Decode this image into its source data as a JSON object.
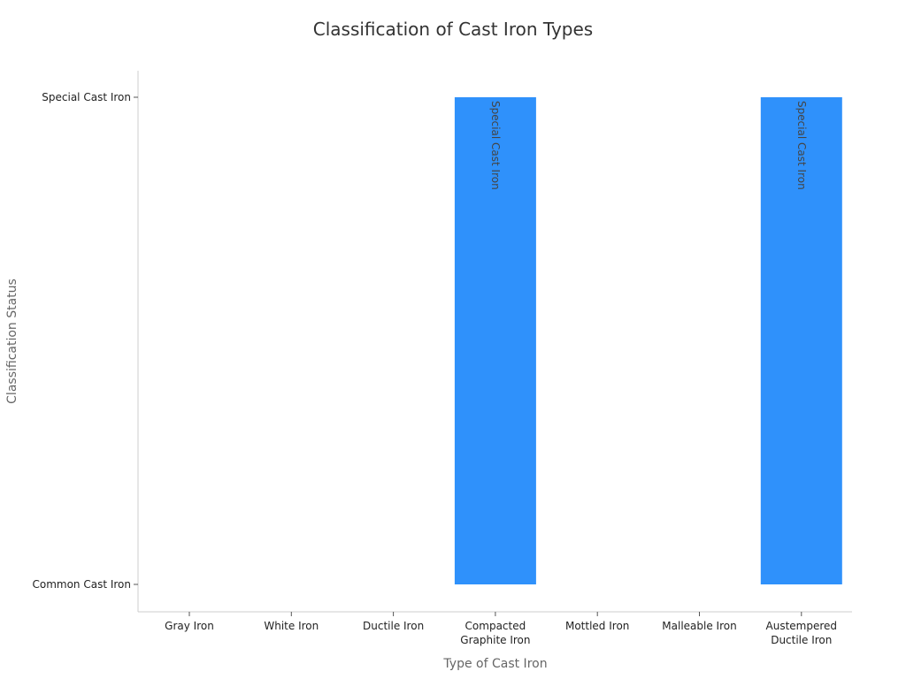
{
  "chart_data": {
    "type": "bar",
    "title": "Classification of Cast Iron Types",
    "xlabel": "Type of Cast Iron",
    "ylabel": "Classification Status",
    "categories": [
      "Gray Iron",
      "White Iron",
      "Ductile Iron",
      "Compacted Graphite Iron",
      "Mottled Iron",
      "Malleable Iron",
      "Austempered Ductile Iron"
    ],
    "category_lines": [
      [
        "Gray Iron"
      ],
      [
        "White Iron"
      ],
      [
        "Ductile Iron"
      ],
      [
        "Compacted",
        "Graphite Iron"
      ],
      [
        "Mottled Iron"
      ],
      [
        "Malleable Iron"
      ],
      [
        "Austempered",
        "Ductile Iron"
      ]
    ],
    "y_categories": [
      "Common Cast Iron",
      "Special Cast Iron"
    ],
    "values": [
      "Common Cast Iron",
      "Common Cast Iron",
      "Common Cast Iron",
      "Special Cast Iron",
      "Common Cast Iron",
      "Common Cast Iron",
      "Special Cast Iron"
    ],
    "data_labels": [
      "",
      "",
      "",
      "Special Cast Iron",
      "",
      "",
      "Special Cast Iron"
    ],
    "bar_color": "#2f91fb",
    "grid": false,
    "legend": "none"
  }
}
